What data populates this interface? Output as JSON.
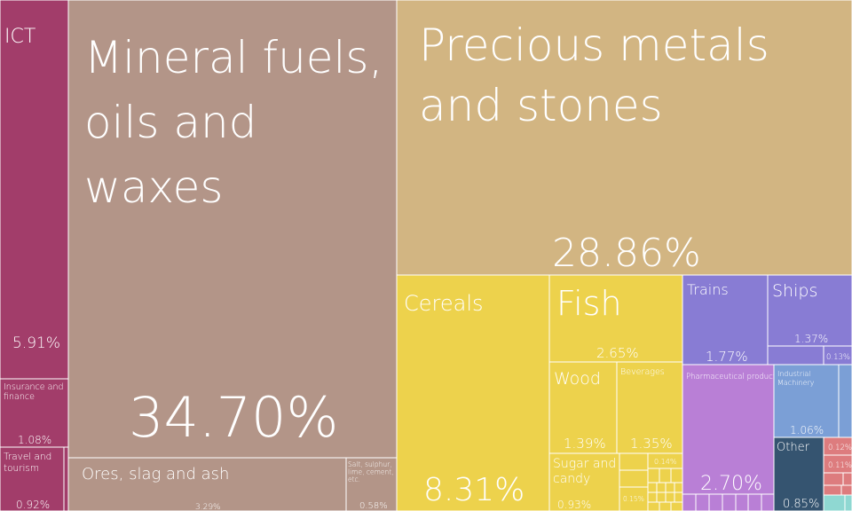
{
  "chart_data": {
    "type": "treemap",
    "unit": "%",
    "colors": {
      "services": "#a23d6a",
      "minerals": "#b39588",
      "precious": "#d2b582",
      "agri": "#edd24c",
      "transport": "#887cd4",
      "chemicals": "#b97fd6",
      "machinery": "#7b9fd6",
      "other": "#355470",
      "textiles": "#dd7c7e",
      "misc": "#8fd8d2"
    },
    "items": [
      {
        "name": "ICT",
        "value": 5.91,
        "value_label": "5.91%",
        "color": "services"
      },
      {
        "name": "Insurance and finance",
        "value": 1.08,
        "value_label": "1.08%",
        "color": "services"
      },
      {
        "name": "Travel and tourism",
        "value": 0.92,
        "value_label": "0.92%",
        "color": "services"
      },
      {
        "name": "Mineral fuels, oils and waxes",
        "value": 34.7,
        "value_label": "34.70%",
        "color": "minerals"
      },
      {
        "name": "Ores, slag and ash",
        "value": 3.29,
        "value_label": "3.29%",
        "color": "minerals"
      },
      {
        "name": "Salt, sulphur, lime, cement, etc.",
        "value": 0.58,
        "value_label": "0.58%",
        "color": "minerals"
      },
      {
        "name": "Precious metals and stones",
        "value": 28.86,
        "value_label": "28.86%",
        "color": "precious"
      },
      {
        "name": "Cereals",
        "value": 8.31,
        "value_label": "8.31%",
        "color": "agri"
      },
      {
        "name": "Fish",
        "value": 2.65,
        "value_label": "2.65%",
        "color": "agri"
      },
      {
        "name": "Wood",
        "value": 1.39,
        "value_label": "1.39%",
        "color": "agri"
      },
      {
        "name": "Beverages",
        "value": 1.35,
        "value_label": "1.35%",
        "color": "agri"
      },
      {
        "name": "Sugar and candy",
        "value": 0.93,
        "value_label": "0.93%",
        "color": "agri"
      },
      {
        "name": "",
        "value": 0.15,
        "value_label": "0.15%",
        "color": "agri"
      },
      {
        "name": "",
        "value": 0.14,
        "value_label": "0.14%",
        "color": "agri"
      },
      {
        "name": "Trains",
        "value": 1.77,
        "value_label": "1.77%",
        "color": "transport"
      },
      {
        "name": "Ships",
        "value": 1.37,
        "value_label": "1.37%",
        "color": "transport"
      },
      {
        "name": "",
        "value": 0.13,
        "value_label": "0.13%",
        "color": "transport"
      },
      {
        "name": "Pharmaceutical products",
        "value": 2.7,
        "value_label": "2.70%",
        "color": "chemicals"
      },
      {
        "name": "Industrial Machinery",
        "value": 1.06,
        "value_label": "1.06%",
        "color": "machinery"
      },
      {
        "name": "Other",
        "value": 0.85,
        "value_label": "0.85%",
        "color": "other"
      },
      {
        "name": "",
        "value": 0.12,
        "value_label": "0.12%",
        "color": "textiles"
      },
      {
        "name": "",
        "value": 0.11,
        "value_label": "0.11%",
        "color": "textiles"
      }
    ]
  }
}
